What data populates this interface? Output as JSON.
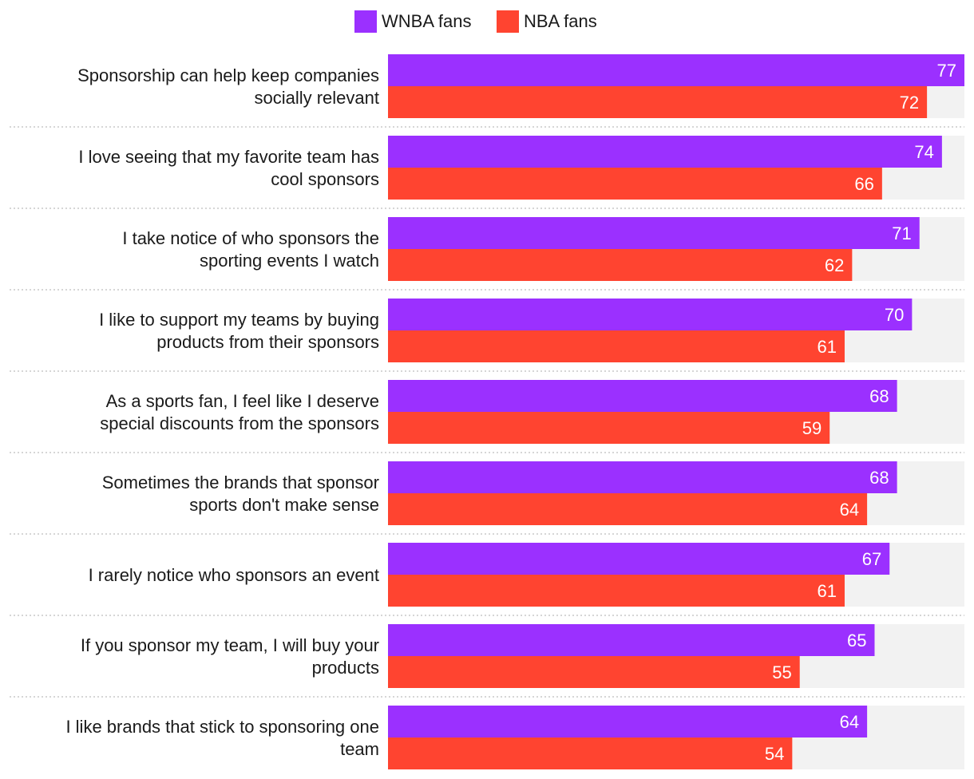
{
  "chart_data": {
    "type": "bar",
    "orientation": "horizontal",
    "grid": false,
    "legend_position": "top-center",
    "xlim": [
      0,
      77
    ],
    "colors": {
      "track": "#f2f2f2",
      "separator": "#c8c8c8"
    },
    "legend": [
      {
        "name": "WNBA fans",
        "color": "#9b30ff"
      },
      {
        "name": "NBA fans",
        "color": "#ff4430"
      }
    ],
    "categories": [
      [
        "Sponsorship can help keep companies",
        "socially relevant"
      ],
      [
        "I love seeing that my favorite team has",
        "cool sponsors"
      ],
      [
        "I take notice of who sponsors the",
        "sporting events I watch"
      ],
      [
        "I like to support my teams by buying",
        "products from their sponsors"
      ],
      [
        "As a sports fan, I feel like I deserve",
        "special discounts from the sponsors"
      ],
      [
        "Sometimes the brands that sponsor",
        "sports don't make sense"
      ],
      [
        "I rarely notice who sponsors an event"
      ],
      [
        "If you sponsor my team, I will buy your",
        "products"
      ],
      [
        "I like brands that stick to sponsoring one",
        "team"
      ]
    ],
    "series": [
      {
        "name": "WNBA fans",
        "color": "#9b30ff",
        "values": [
          77,
          74,
          71,
          70,
          68,
          68,
          67,
          65,
          64
        ]
      },
      {
        "name": "NBA fans",
        "color": "#ff4430",
        "values": [
          72,
          66,
          62,
          61,
          59,
          64,
          61,
          55,
          54
        ]
      }
    ]
  }
}
